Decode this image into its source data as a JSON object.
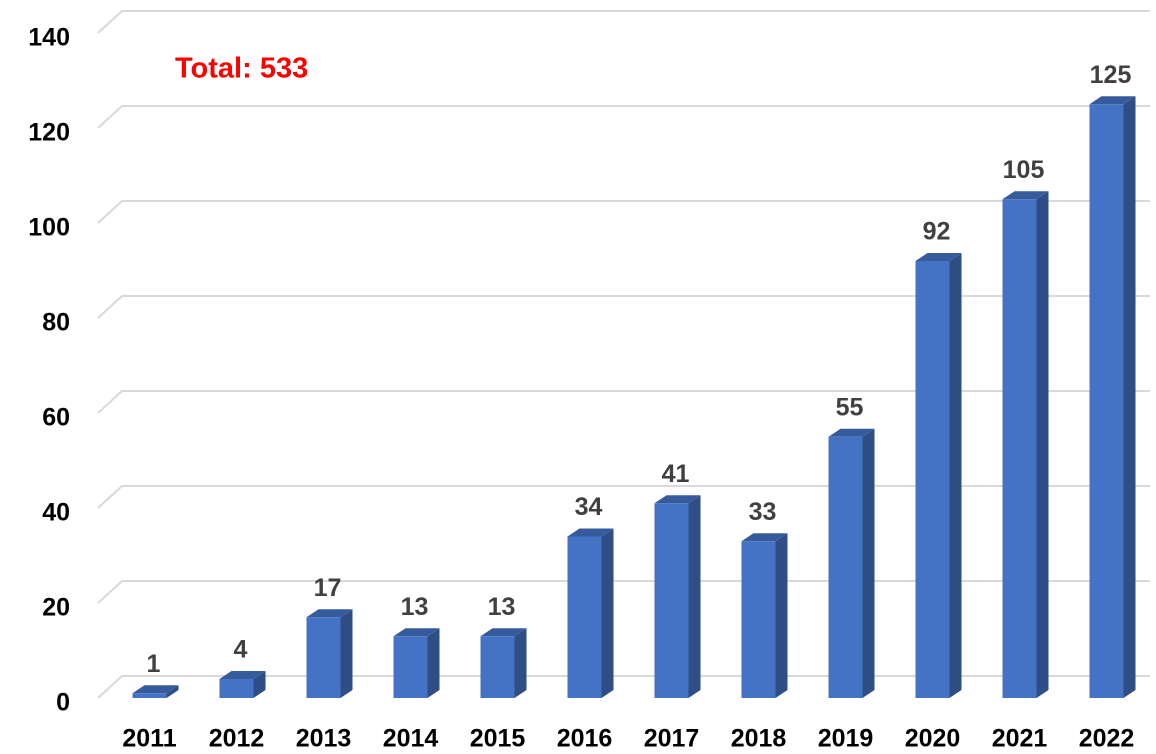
{
  "chart_data": {
    "type": "bar3d",
    "categories": [
      "2011",
      "2012",
      "2013",
      "2014",
      "2015",
      "2016",
      "2017",
      "2018",
      "2019",
      "2020",
      "2021",
      "2022"
    ],
    "values": [
      1,
      4,
      17,
      13,
      13,
      34,
      41,
      33,
      55,
      92,
      105,
      125
    ],
    "color": "#4472c4",
    "ylim": [
      0,
      140
    ],
    "yticks": [
      0,
      20,
      40,
      60,
      80,
      100,
      120,
      140
    ],
    "grid": true,
    "annotation": "Total: 533"
  }
}
